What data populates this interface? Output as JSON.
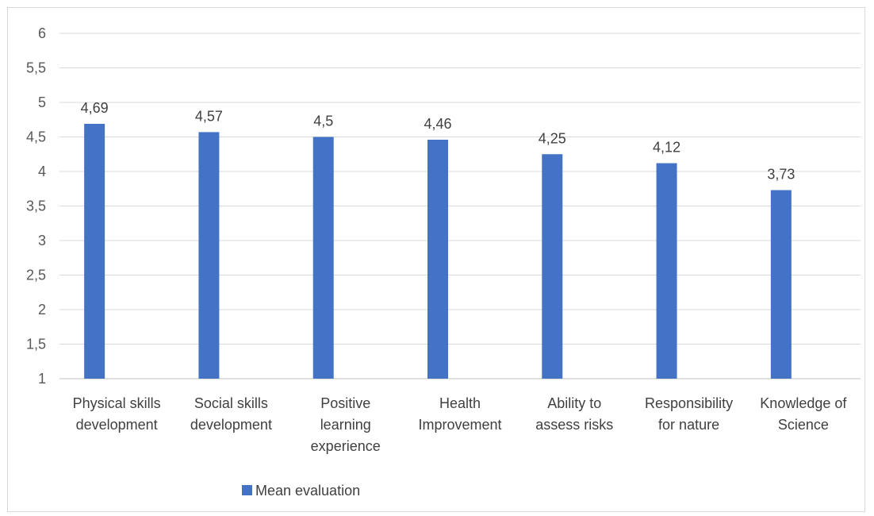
{
  "chart_data": {
    "type": "bar",
    "categories": [
      [
        "Physical skills",
        "development"
      ],
      [
        "Social skills",
        "development"
      ],
      [
        "Positive",
        "learning",
        "experience"
      ],
      [
        "Health",
        "Improvement"
      ],
      [
        "Ability to",
        "assess risks"
      ],
      [
        "Responsibility",
        "for nature"
      ],
      [
        "Knowledge of",
        "Science"
      ]
    ],
    "series": [
      {
        "name": "Mean evaluation",
        "values": [
          4.69,
          4.57,
          4.5,
          4.46,
          4.25,
          4.12,
          3.73
        ],
        "labels": [
          "4,69",
          "4,57",
          "4,5",
          "4,46",
          "4,25",
          "4,12",
          "3,73"
        ],
        "color": "#4472c4"
      }
    ],
    "ylim": [
      1,
      6
    ],
    "yticks": [
      1,
      1.5,
      2,
      2.5,
      3,
      3.5,
      4,
      4.5,
      5,
      5.5,
      6
    ],
    "ytick_labels": [
      "1",
      "1,5",
      "2",
      "2,5",
      "3",
      "3,5",
      "4",
      "4,5",
      "5",
      "5,5",
      "6"
    ],
    "grid": true,
    "legend_position": "bottom",
    "title": "",
    "xlabel": "",
    "ylabel": ""
  }
}
